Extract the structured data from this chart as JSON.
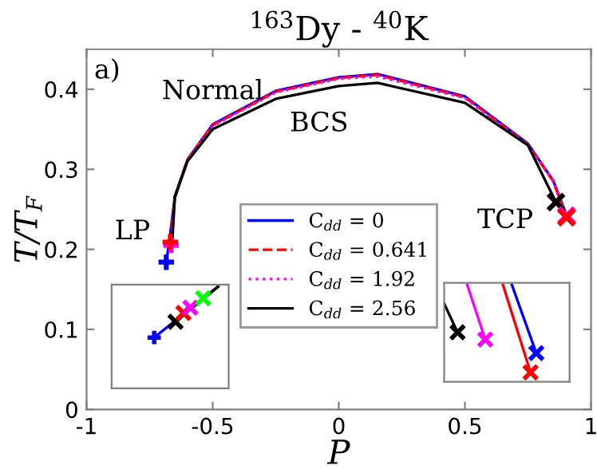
{
  "chart_data": {
    "type": "line",
    "title": "$^{163}$Dy - $^{40}$K",
    "xlabel": "P",
    "ylabel": "T/T$_{F}$",
    "xlim": [
      -1,
      1
    ],
    "ylim": [
      0,
      0.45
    ],
    "xticks": [
      -1,
      -0.5,
      0,
      0.5,
      1
    ],
    "yticks": [
      0,
      0.1,
      0.2,
      0.3,
      0.4
    ],
    "grid": false,
    "legend": "bottom",
    "series": [
      {
        "name": "C$_{dd}$ = 0",
        "color": "#0000ff",
        "line_style": "solid",
        "x": [
          -0.684,
          -0.67,
          -0.65,
          -0.6,
          -0.5,
          -0.25,
          0,
          0.154,
          0.5,
          0.75,
          0.85,
          0.9
        ],
        "values": [
          0.184,
          0.215,
          0.266,
          0.312,
          0.356,
          0.398,
          0.415,
          0.419,
          0.391,
          0.332,
          0.286,
          0.245
        ]
      },
      {
        "name": "C$_{dd}$ = 0.641",
        "color": "#ff0000",
        "line_style": "dashed",
        "x": [
          -0.668,
          -0.65,
          -0.6,
          -0.5,
          -0.25,
          0,
          0.154,
          0.5,
          0.75,
          0.85,
          0.903
        ],
        "values": [
          0.209,
          0.266,
          0.312,
          0.355,
          0.397,
          0.414,
          0.418,
          0.39,
          0.331,
          0.285,
          0.24
        ]
      },
      {
        "name": "C$_{dd}$ = 1.92",
        "color": "#ff00ff",
        "line_style": "dotted",
        "x": [
          -0.665,
          -0.65,
          -0.6,
          -0.5,
          -0.25,
          0,
          0.154,
          0.5,
          0.75,
          0.85,
          0.903
        ],
        "values": [
          0.205,
          0.265,
          0.311,
          0.354,
          0.396,
          0.413,
          0.416,
          0.389,
          0.33,
          0.286,
          0.242
        ]
      },
      {
        "name": "C$_{dd}$ = 2.56",
        "color": "#000000",
        "line_style": "solid",
        "x": [
          -0.66,
          -0.65,
          -0.6,
          -0.5,
          -0.25,
          0,
          0.154,
          0.5,
          0.75,
          0.861
        ],
        "values": [
          0.212,
          0.265,
          0.31,
          0.35,
          0.388,
          0.404,
          0.408,
          0.383,
          0.33,
          0.259
        ]
      },
      {
        "type": "scatter",
        "marker": "plus",
        "color": "#0000ff",
        "x": [
          -0.684
        ],
        "values": [
          0.184
        ]
      },
      {
        "type": "scatter",
        "marker": "plus",
        "color": "#ff00ff",
        "x": [
          -0.665
        ],
        "values": [
          0.205
        ]
      },
      {
        "type": "scatter",
        "marker": "plus",
        "color": "#ff0000",
        "x": [
          -0.668
        ],
        "values": [
          0.209
        ]
      },
      {
        "type": "scatter",
        "marker": "cross",
        "color": "#000000",
        "x": [
          0.861
        ],
        "values": [
          0.259
        ]
      },
      {
        "type": "scatter",
        "marker": "cross",
        "color": "#ff00ff",
        "x": [
          0.903
        ],
        "values": [
          0.242
        ]
      },
      {
        "type": "scatter",
        "marker": "cross",
        "color": "#ff0000",
        "x": [
          0.903
        ],
        "values": [
          0.24
        ]
      }
    ],
    "annotations": [
      "a)",
      "Normal",
      "BCS",
      "LP",
      "TCP"
    ]
  }
}
